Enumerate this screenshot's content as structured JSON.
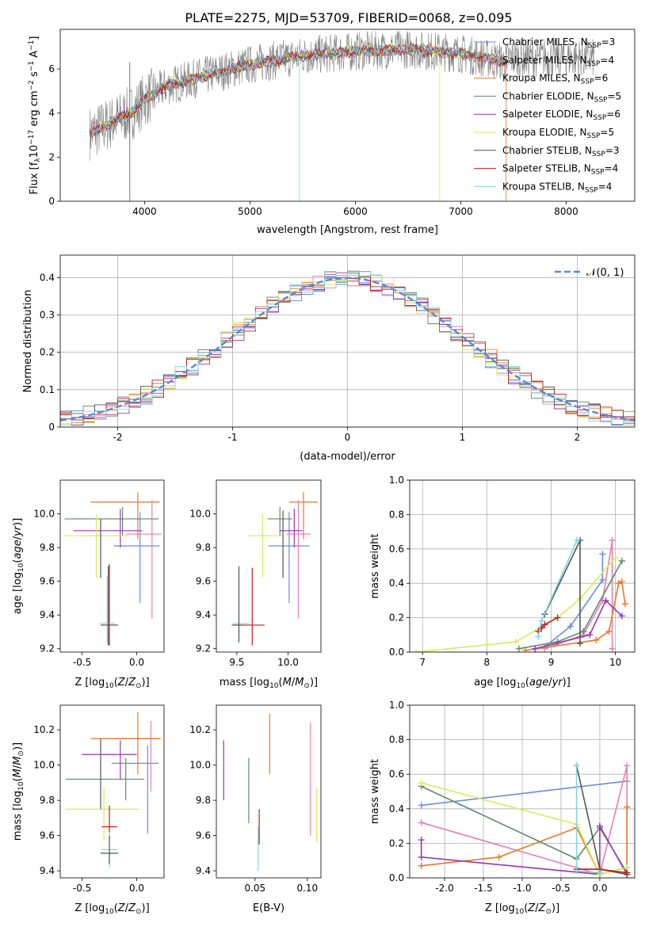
{
  "title": "PLATE=2275, MJD=53709, FIBERID=0068, z=0.095",
  "series_styles": [
    {
      "name": "Chabrier MILES, N_SSP=3",
      "color": "#6a8cdc"
    },
    {
      "name": "Salpeter MILES, N_SSP=4",
      "color": "#e57fb4"
    },
    {
      "name": "Kroupa MILES, N_SSP=6",
      "color": "#e8792a"
    },
    {
      "name": "Chabrier ELODIE, N_SSP=5",
      "color": "#5e8a6a"
    },
    {
      "name": "Salpeter ELODIE, N_SSP=6",
      "color": "#9c35b0"
    },
    {
      "name": "Kroupa ELODIE, N_SSP=5",
      "color": "#d8ec52"
    },
    {
      "name": "Chabrier STELIB, N_SSP=3",
      "color": "#555555"
    },
    {
      "name": "Salpeter STELIB, N_SSP=4",
      "color": "#c41c1c"
    },
    {
      "name": "Kroupa STELIB, N_SSP=4",
      "color": "#7fd6de"
    }
  ],
  "chart_data": [
    {
      "id": "spectrum",
      "type": "line",
      "xlabel": "wavelength [Angstrom, rest frame]",
      "ylabel": "Flux [f_λ 10^-17 erg cm^-2 s^-1 A^-1]",
      "xlim": [
        3200,
        8650
      ],
      "ylim": [
        0,
        7.8
      ],
      "xticks": [
        4000,
        5000,
        6000,
        7000,
        8000
      ],
      "yticks": [
        0,
        2,
        4,
        6
      ],
      "legend_position": "top-right",
      "legend": [
        "Chabrier MILES, N_SSP=3",
        "Salpeter MILES, N_SSP=4",
        "Kroupa MILES, N_SSP=6",
        "Chabrier ELODIE, N_SSP=5",
        "Salpeter ELODIE, N_SSP=6",
        "Kroupa ELODIE, N_SSP=5",
        "Chabrier STELIB, N_SSP=3",
        "Salpeter STELIB, N_SSP=4",
        "Kroupa STELIB, N_SSP=4"
      ],
      "continuum": {
        "x": [
          3500,
          3700,
          3900,
          4000,
          4200,
          4500,
          5000,
          5500,
          6000,
          6500,
          7000,
          7440
        ],
        "y": [
          3.1,
          3.6,
          4.1,
          4.6,
          5.2,
          5.6,
          6.2,
          6.6,
          6.8,
          6.9,
          6.7,
          6.3
        ]
      },
      "observed_data": {
        "color": "#808080",
        "x_range": [
          3480,
          8270
        ],
        "y_center_offset": 0,
        "noise_amplitude": 0.9
      },
      "notes": "Models span approx 3480 to 7440 Angstrom; observed spectrum extends to about 8270."
    },
    {
      "id": "residuals",
      "type": "histogram",
      "xlabel": "(data-model)/error",
      "ylabel": "Normed distribution",
      "xlim": [
        -2.5,
        2.5
      ],
      "ylim": [
        0,
        0.46
      ],
      "xticks": [
        -2,
        -1,
        0,
        1,
        2
      ],
      "yticks": [
        0,
        0.1,
        0.2,
        0.3,
        0.4
      ],
      "grid": true,
      "bin_width": 0.1,
      "reference_curve": {
        "label": "𝒩(0, 1)",
        "color": "#5b86d6",
        "style": "dashed"
      },
      "legend_position": "top-right"
    },
    {
      "id": "age_vs_Z",
      "type": "errorbar",
      "xlabel": "Z [log10(Z/Z_sun)]",
      "ylabel": "age [log10(age/yr)]",
      "xlim": [
        -0.7,
        0.25
      ],
      "ylim": [
        9.18,
        10.2
      ],
      "xticks": [
        -0.5,
        0.0
      ],
      "yticks": [
        9.2,
        9.4,
        9.6,
        9.8,
        10.0
      ],
      "points": [
        {
          "x": 0.03,
          "y": 9.81,
          "xerr": [
            0.24,
            0.18
          ],
          "yerr": [
            0.34,
            0.2
          ],
          "c": 0
        },
        {
          "x": 0.14,
          "y": 9.88,
          "xerr": [
            0.24,
            0.09
          ],
          "yerr": [
            0.5,
            0.2
          ],
          "c": 1
        },
        {
          "x": 0.01,
          "y": 10.07,
          "xerr": [
            0.43,
            0.2
          ],
          "yerr": [
            0.22,
            0.06
          ],
          "c": 2
        },
        {
          "x": -0.13,
          "y": 9.97,
          "xerr": [
            0.53,
            0.33
          ],
          "yerr": [
            0.1,
            0.07
          ],
          "c": 3
        },
        {
          "x": -0.15,
          "y": 9.9,
          "xerr": [
            0.43,
            0.2
          ],
          "yerr": [
            0.1,
            0.13
          ],
          "c": 4
        },
        {
          "x": -0.37,
          "y": 9.87,
          "xerr": [
            0.3,
            0.3
          ],
          "yerr": [
            0.25,
            0.13
          ],
          "c": 5
        },
        {
          "x": -0.33,
          "y": 9.82,
          "xerr": [
            0.0,
            0.0
          ],
          "yerr": [
            0.2,
            0.15
          ],
          "c": 6
        },
        {
          "x": -0.25,
          "y": 9.34,
          "xerr": [
            0.08,
            0.08
          ],
          "yerr": [
            0.12,
            0.36
          ],
          "c": 7
        },
        {
          "x": -0.27,
          "y": 9.35,
          "xerr": [
            0.07,
            0.07
          ],
          "yerr": [
            0.12,
            0.28
          ],
          "c": 8
        },
        {
          "x": -0.26,
          "y": 9.34,
          "xerr": [
            0.06,
            0.06
          ],
          "yerr": [
            0.12,
            0.35
          ],
          "c": 6
        }
      ]
    },
    {
      "id": "age_vs_mass",
      "type": "errorbar",
      "xlabel": "mass [log10(M/M_sun)]",
      "ylabel": "",
      "xlim": [
        9.3,
        10.32
      ],
      "ylim": [
        9.18,
        10.2
      ],
      "xticks": [
        9.5,
        10.0
      ],
      "yticks": [
        9.2,
        9.4,
        9.6,
        9.8,
        10.0
      ],
      "points": [
        {
          "x": 10.01,
          "y": 9.81,
          "xerr": [
            0.2,
            0.2
          ],
          "yerr": [
            0.34,
            0.2
          ],
          "c": 0
        },
        {
          "x": 10.1,
          "y": 9.88,
          "xerr": [
            0.12,
            0.12
          ],
          "yerr": [
            0.5,
            0.2
          ],
          "c": 1
        },
        {
          "x": 10.15,
          "y": 10.07,
          "xerr": [
            0.14,
            0.14
          ],
          "yerr": [
            0.22,
            0.06
          ],
          "c": 2
        },
        {
          "x": 9.92,
          "y": 9.97,
          "xerr": [
            0.12,
            0.12
          ],
          "yerr": [
            0.1,
            0.07
          ],
          "c": 3
        },
        {
          "x": 10.06,
          "y": 9.9,
          "xerr": [
            0.14,
            0.08
          ],
          "yerr": [
            0.1,
            0.13
          ],
          "c": 4
        },
        {
          "x": 9.75,
          "y": 9.87,
          "xerr": [
            0.14,
            0.2
          ],
          "yerr": [
            0.25,
            0.13
          ],
          "c": 5
        },
        {
          "x": 9.95,
          "y": 9.82,
          "xerr": [
            0.0,
            0.0
          ],
          "yerr": [
            0.2,
            0.2
          ],
          "c": 6
        },
        {
          "x": 9.65,
          "y": 9.34,
          "xerr": [
            0.2,
            0.12
          ],
          "yerr": [
            0.12,
            0.34
          ],
          "c": 7
        },
        {
          "x": 9.52,
          "y": 9.35,
          "xerr": [
            0.06,
            0.1
          ],
          "yerr": [
            0.12,
            0.28
          ],
          "c": 8
        },
        {
          "x": 9.52,
          "y": 9.34,
          "xerr": [
            0.05,
            0.05
          ],
          "yerr": [
            0.1,
            0.35
          ],
          "c": 6
        }
      ]
    },
    {
      "id": "massweight_vs_age",
      "type": "line",
      "xlabel": "age [log10(age/yr)]",
      "ylabel": "mass weight",
      "xlim": [
        6.8,
        10.3
      ],
      "ylim": [
        0,
        1.0
      ],
      "xticks": [
        7,
        8,
        9,
        10
      ],
      "yticks": [
        0.0,
        0.2,
        0.4,
        0.6,
        0.8,
        1.0
      ],
      "grid": true,
      "series": [
        {
          "c": 0,
          "x": [
            8.9,
            9.3,
            9.8,
            9.8
          ],
          "y": [
            0.03,
            0.15,
            0.42,
            0.57
          ]
        },
        {
          "c": 1,
          "x": [
            8.9,
            9.5,
            9.8,
            9.95,
            9.95
          ],
          "y": [
            0.02,
            0.1,
            0.3,
            0.65,
            0.02
          ]
        },
        {
          "c": 2,
          "x": [
            8.6,
            9.7,
            9.9,
            10.05,
            10.1,
            10.15
          ],
          "y": [
            0.01,
            0.07,
            0.12,
            0.4,
            0.41,
            0.28
          ]
        },
        {
          "c": 3,
          "x": [
            8.5,
            9.1,
            9.5,
            10.1
          ],
          "y": [
            0.02,
            0.06,
            0.12,
            0.53
          ]
        },
        {
          "c": 4,
          "x": [
            8.75,
            9.6,
            9.85,
            10.1
          ],
          "y": [
            0.02,
            0.1,
            0.3,
            0.21
          ]
        },
        {
          "c": 5,
          "x": [
            6.9,
            8.45,
            9.1,
            9.45,
            10.0
          ],
          "y": [
            0.0,
            0.06,
            0.2,
            0.31,
            0.55
          ]
        },
        {
          "c": 6,
          "x": [
            8.9,
            9.45,
            9.45
          ],
          "y": [
            0.22,
            0.65,
            0.05
          ]
        },
        {
          "c": 7,
          "x": [
            8.8,
            8.85,
            8.9,
            9.1
          ],
          "y": [
            0.12,
            0.14,
            0.16,
            0.2
          ]
        },
        {
          "c": 8,
          "x": [
            8.8,
            8.85,
            9.4
          ],
          "y": [
            0.09,
            0.18,
            0.65
          ]
        }
      ]
    },
    {
      "id": "mass_vs_Z",
      "type": "errorbar",
      "xlabel": "Z [log10(Z/Z_sun)]",
      "ylabel": "mass [log10(M/M_sun)]",
      "xlim": [
        -0.7,
        0.25
      ],
      "ylim": [
        9.36,
        10.34
      ],
      "xticks": [
        -0.5,
        0.0
      ],
      "yticks": [
        9.4,
        9.6,
        9.8,
        10.0,
        10.2
      ],
      "points": [
        {
          "x": 0.1,
          "y": 10.01,
          "xerr": [
            0.33,
            0.1
          ],
          "yerr": [
            0.4,
            0.1
          ],
          "c": 0
        },
        {
          "x": 0.13,
          "y": 10.15,
          "xerr": [
            0.38,
            0.08
          ],
          "yerr": [
            0.3,
            0.1
          ],
          "c": 1
        },
        {
          "x": 0.01,
          "y": 10.15,
          "xerr": [
            0.43,
            0.21
          ],
          "yerr": [
            0.2,
            0.15
          ],
          "c": 2
        },
        {
          "x": -0.1,
          "y": 9.92,
          "xerr": [
            0.55,
            0.17
          ],
          "yerr": [
            0.12,
            0.12
          ],
          "c": 3
        },
        {
          "x": -0.15,
          "y": 10.06,
          "xerr": [
            0.35,
            0.15
          ],
          "yerr": [
            0.14,
            0.08
          ],
          "c": 4
        },
        {
          "x": -0.3,
          "y": 9.75,
          "xerr": [
            0.35,
            0.32
          ],
          "yerr": [
            0.18,
            0.12
          ],
          "c": 5
        },
        {
          "x": -0.33,
          "y": 9.95,
          "xerr": [
            0.0,
            0.0
          ],
          "yerr": [
            0.2,
            0.2
          ],
          "c": 6
        },
        {
          "x": -0.25,
          "y": 9.65,
          "xerr": [
            0.07,
            0.07
          ],
          "yerr": [
            0.04,
            0.12
          ],
          "c": 7
        },
        {
          "x": -0.25,
          "y": 9.52,
          "xerr": [
            0.07,
            0.07
          ],
          "yerr": [
            0.1,
            0.1
          ],
          "c": 8
        },
        {
          "x": -0.25,
          "y": 9.5,
          "xerr": [
            0.08,
            0.08
          ],
          "yerr": [
            0.06,
            0.1
          ],
          "c": 6
        }
      ]
    },
    {
      "id": "mass_vs_EBV",
      "type": "errorbar",
      "xlabel": "E(B-V)",
      "ylabel": "",
      "xlim": [
        0.013,
        0.113
      ],
      "ylim": [
        9.36,
        10.34
      ],
      "xticks": [
        0.05,
        0.1
      ],
      "yticks": [
        9.4,
        9.6,
        9.8,
        10.0,
        10.2
      ],
      "points": [
        {
          "x": 0.103,
          "y": 9.9,
          "xerr": [
            0,
            0
          ],
          "yerr": [
            0.3,
            0.34
          ],
          "c": 1
        },
        {
          "x": 0.064,
          "y": 10.12,
          "xerr": [
            0,
            0
          ],
          "yerr": [
            0.17,
            0.17
          ],
          "c": 2
        },
        {
          "x": 0.044,
          "y": 9.85,
          "xerr": [
            0,
            0
          ],
          "yerr": [
            0.18,
            0.19
          ],
          "c": 3
        },
        {
          "x": 0.02,
          "y": 9.97,
          "xerr": [
            0,
            0
          ],
          "yerr": [
            0.17,
            0.17
          ],
          "c": 4
        },
        {
          "x": 0.109,
          "y": 9.72,
          "xerr": [
            0,
            0
          ],
          "yerr": [
            0.16,
            0.15
          ],
          "c": 5
        },
        {
          "x": 0.054,
          "y": 9.65,
          "xerr": [
            0,
            0
          ],
          "yerr": [
            0.1,
            0.1
          ],
          "c": 7
        },
        {
          "x": 0.053,
          "y": 9.52,
          "xerr": [
            0,
            0
          ],
          "yerr": [
            0.12,
            0.13
          ],
          "c": 8
        }
      ]
    },
    {
      "id": "massweight_vs_Z",
      "type": "line",
      "xlabel": "Z [log10(Z/Z_sun)]",
      "ylabel": "mass weight",
      "xlim": [
        -2.45,
        0.45
      ],
      "ylim": [
        0,
        1.0
      ],
      "xticks": [
        -2.0,
        -1.5,
        -1.0,
        -0.5,
        0.0
      ],
      "yticks": [
        0.0,
        0.2,
        0.4,
        0.6,
        0.8,
        1.0
      ],
      "grid": true,
      "series": [
        {
          "c": 0,
          "x": [
            -2.3,
            0.35
          ],
          "y": [
            0.42,
            0.56
          ]
        },
        {
          "c": 1,
          "x": [
            -2.3,
            0.0,
            0.35,
            0.35
          ],
          "y": [
            0.32,
            0.02,
            0.65,
            0.02
          ]
        },
        {
          "c": 2,
          "x": [
            -2.3,
            -1.3,
            -0.3,
            0.0,
            0.35,
            0.35
          ],
          "y": [
            0.07,
            0.12,
            0.29,
            0.02,
            0.06,
            0.41
          ]
        },
        {
          "c": 3,
          "x": [
            -2.3,
            -0.3,
            0.0,
            0.35
          ],
          "y": [
            0.53,
            0.11,
            0.29,
            0.03
          ]
        },
        {
          "c": 4,
          "x": [
            -2.3,
            -2.3,
            0.0,
            0.0,
            0.35
          ],
          "y": [
            0.22,
            0.12,
            0.02,
            0.3,
            0.02
          ]
        },
        {
          "c": 5,
          "x": [
            -2.3,
            -0.3,
            0.0,
            0.35
          ],
          "y": [
            0.55,
            0.31,
            0.02,
            0.06
          ]
        },
        {
          "c": 6,
          "x": [
            -0.3,
            0.0,
            0.35
          ],
          "y": [
            0.65,
            0.05,
            0.02
          ]
        },
        {
          "c": 7,
          "x": [
            -0.3,
            0.0,
            0.35
          ],
          "y": [
            0.05,
            0.05,
            0.03
          ]
        },
        {
          "c": 8,
          "x": [
            -0.3,
            -0.3,
            0.0
          ],
          "y": [
            0.65,
            0.04,
            0.03
          ]
        }
      ]
    }
  ]
}
